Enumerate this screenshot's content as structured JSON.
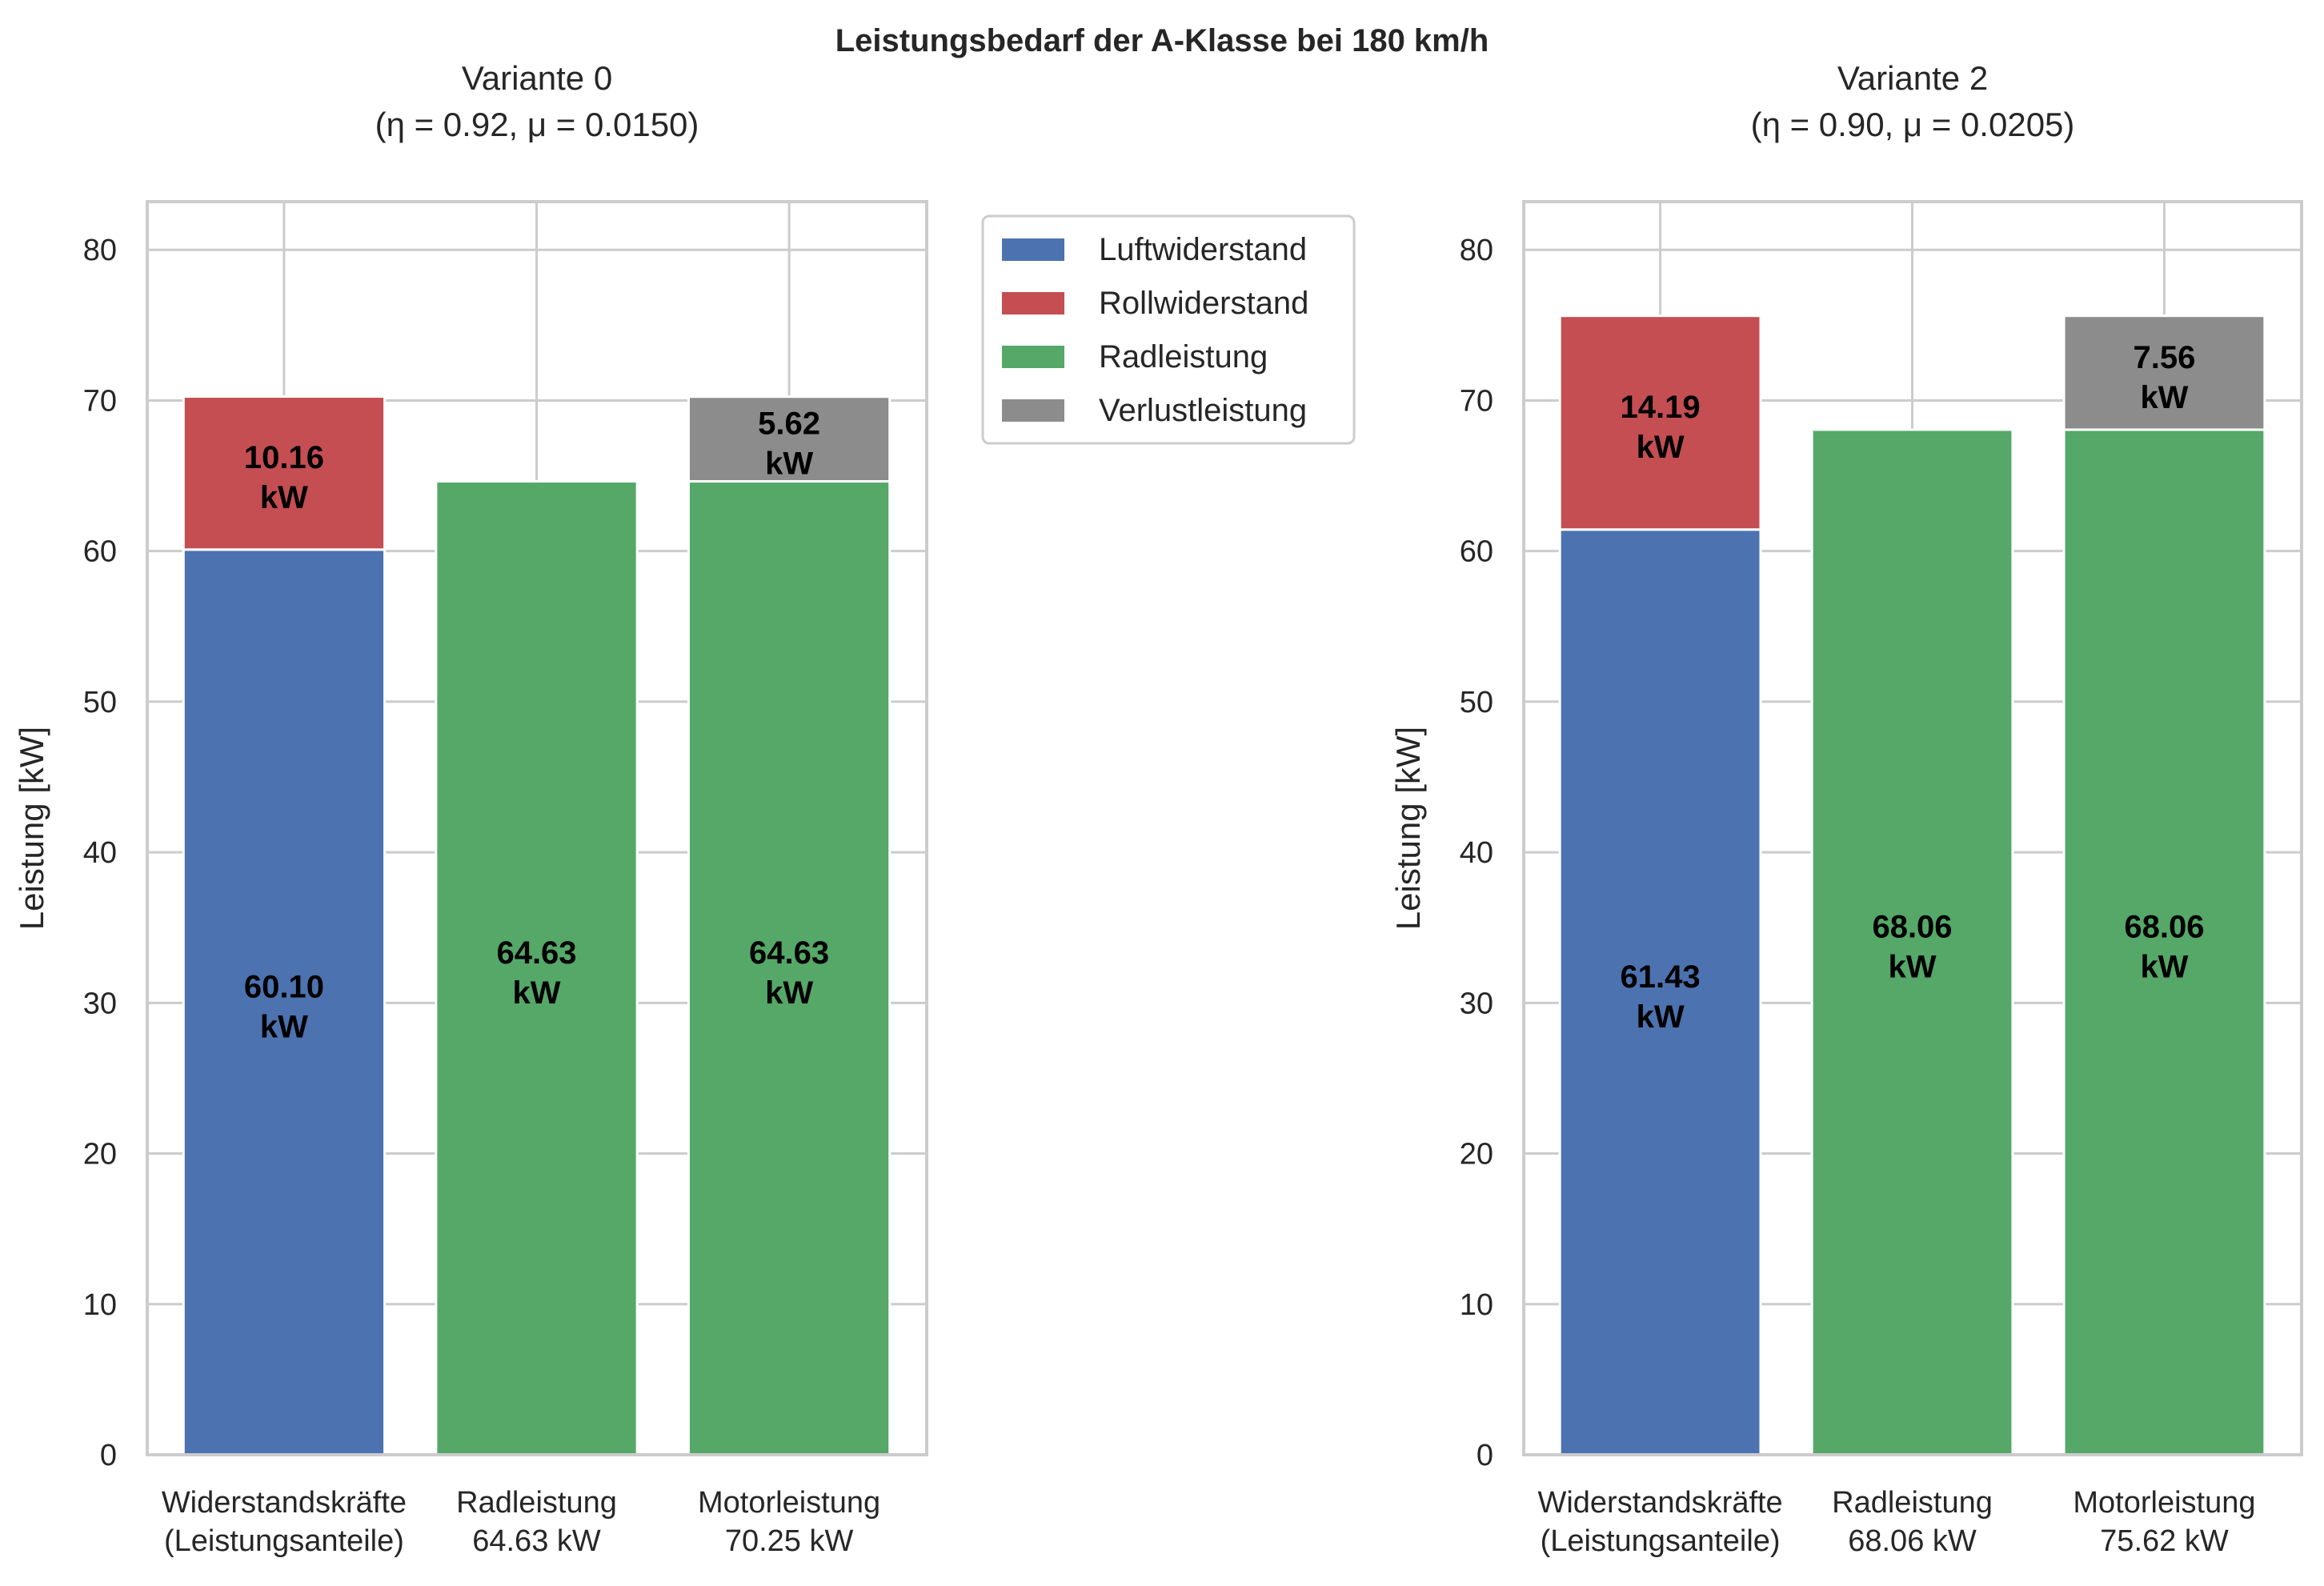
{
  "figure": {
    "suptitle": "Leistungsbedarf der A-Klasse bei 180 km/h"
  },
  "legend": {
    "position": "right of left panel, top",
    "items": [
      {
        "label": "Luftwiderstand",
        "color": "#4C72B0"
      },
      {
        "label": "Rollwiderstand",
        "color": "#C44E52"
      },
      {
        "label": "Radleistung",
        "color": "#55A868"
      },
      {
        "label": "Verlustleistung",
        "color": "#8C8C8C"
      }
    ]
  },
  "chart_data": [
    {
      "type": "bar",
      "stacked": true,
      "title_line1": "Variante 0",
      "title_line2": "(η = 0.92, μ = 0.0150)",
      "ylabel": "Leistung [kW]",
      "ylim": [
        0,
        83.2
      ],
      "yticks": [
        0,
        10,
        20,
        30,
        40,
        50,
        60,
        70,
        80
      ],
      "grid": true,
      "categories": [
        [
          "Widerstandskräfte",
          "(Leistungsanteile)"
        ],
        [
          "Radleistung",
          "64.63 kW"
        ],
        [
          "Motorleistung",
          "70.25 kW"
        ]
      ],
      "bars": [
        {
          "segments": [
            {
              "series": "Luftwiderstand",
              "value": 60.1,
              "label": [
                "60.10",
                "kW"
              ]
            },
            {
              "series": "Rollwiderstand",
              "value": 10.16,
              "label": [
                "10.16",
                "kW"
              ]
            }
          ]
        },
        {
          "segments": [
            {
              "series": "Radleistung",
              "value": 64.63,
              "label": [
                "64.63",
                "kW"
              ]
            }
          ]
        },
        {
          "segments": [
            {
              "series": "Radleistung",
              "value": 64.63,
              "label": [
                "64.63",
                "kW"
              ]
            },
            {
              "series": "Verlustleistung",
              "value": 5.62,
              "label": [
                "5.62",
                "kW"
              ]
            }
          ]
        }
      ]
    },
    {
      "type": "bar",
      "stacked": true,
      "title_line1": "Variante 2",
      "title_line2": "(η = 0.90, μ = 0.0205)",
      "ylabel": "Leistung [kW]",
      "ylim": [
        0,
        83.2
      ],
      "yticks": [
        0,
        10,
        20,
        30,
        40,
        50,
        60,
        70,
        80
      ],
      "grid": true,
      "categories": [
        [
          "Widerstandskräfte",
          "(Leistungsanteile)"
        ],
        [
          "Radleistung",
          "68.06 kW"
        ],
        [
          "Motorleistung",
          "75.62 kW"
        ]
      ],
      "bars": [
        {
          "segments": [
            {
              "series": "Luftwiderstand",
              "value": 61.43,
              "label": [
                "61.43",
                "kW"
              ]
            },
            {
              "series": "Rollwiderstand",
              "value": 14.19,
              "label": [
                "14.19",
                "kW"
              ]
            }
          ]
        },
        {
          "segments": [
            {
              "series": "Radleistung",
              "value": 68.06,
              "label": [
                "68.06",
                "kW"
              ]
            }
          ]
        },
        {
          "segments": [
            {
              "series": "Radleistung",
              "value": 68.06,
              "label": [
                "68.06",
                "kW"
              ]
            },
            {
              "series": "Verlustleistung",
              "value": 7.56,
              "label": [
                "7.56",
                "kW"
              ]
            }
          ]
        }
      ]
    }
  ]
}
